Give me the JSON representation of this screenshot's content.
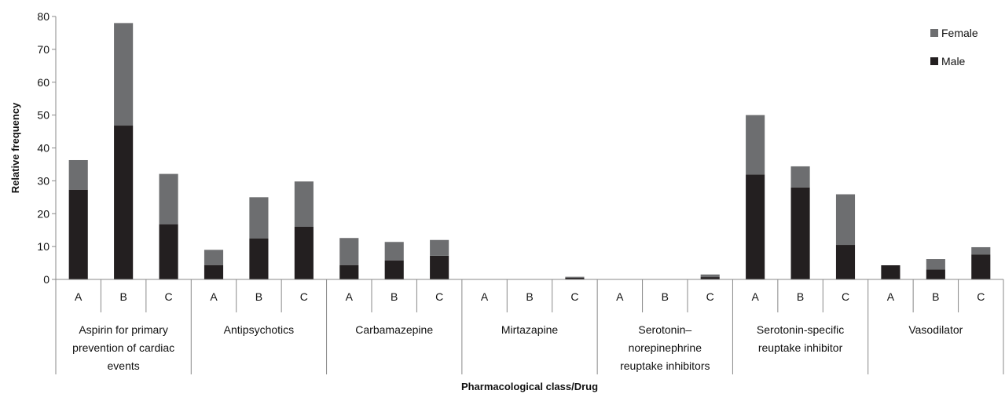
{
  "chart_data": {
    "type": "bar",
    "stacked": true,
    "title": "",
    "xlabel": "Pharmacological class/Drug",
    "ylabel": "Relative frequency",
    "ylim": [
      0,
      80
    ],
    "yticks": [
      0,
      10,
      20,
      30,
      40,
      50,
      60,
      70,
      80
    ],
    "grid": false,
    "legend_position": "top-right",
    "groups": [
      {
        "label_lines": [
          "Aspirin for primary",
          "prevention of cardiac",
          "events"
        ],
        "categories": [
          "A",
          "B",
          "C"
        ]
      },
      {
        "label_lines": [
          "Antipsychotics"
        ],
        "categories": [
          "A",
          "B",
          "C"
        ]
      },
      {
        "label_lines": [
          "Carbamazepine"
        ],
        "categories": [
          "A",
          "B",
          "C"
        ]
      },
      {
        "label_lines": [
          "Mirtazapine"
        ],
        "categories": [
          "A",
          "B",
          "C"
        ]
      },
      {
        "label_lines": [
          "Serotonin–",
          "norepinephrine",
          "reuptake inhibitors"
        ],
        "categories": [
          "A",
          "B",
          "C"
        ]
      },
      {
        "label_lines": [
          "Serotonin-specific",
          "reuptake inhibitor"
        ],
        "categories": [
          "A",
          "B",
          "C"
        ]
      },
      {
        "label_lines": [
          "Vasodilator"
        ],
        "categories": [
          "A",
          "B",
          "C"
        ]
      }
    ],
    "series": [
      {
        "name": "Male",
        "color": "#231f20",
        "values": [
          27.3,
          46.8,
          16.8,
          4.3,
          12.5,
          16.0,
          4.3,
          5.8,
          7.2,
          0,
          0,
          0.5,
          0,
          0,
          0.7,
          31.9,
          28.0,
          10.5,
          4.3,
          3.0,
          7.6
        ]
      },
      {
        "name": "Female",
        "color": "#6d6e70",
        "values": [
          9.0,
          31.2,
          15.3,
          4.7,
          12.5,
          13.8,
          8.3,
          5.6,
          4.8,
          0,
          0,
          0.3,
          0,
          0,
          0.8,
          18.1,
          6.4,
          15.4,
          0,
          3.2,
          2.2
        ]
      }
    ]
  }
}
